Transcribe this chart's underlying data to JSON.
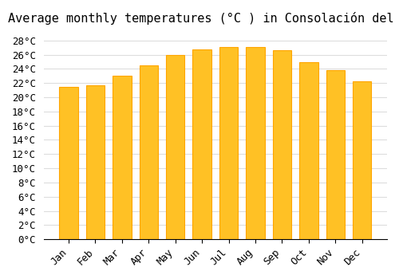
{
  "months": [
    "Jan",
    "Feb",
    "Mar",
    "Apr",
    "May",
    "Jun",
    "Jul",
    "Aug",
    "Sep",
    "Oct",
    "Nov",
    "Dec"
  ],
  "values": [
    21.5,
    21.7,
    23.0,
    24.5,
    26.0,
    26.7,
    27.1,
    27.1,
    26.6,
    25.0,
    23.8,
    22.2
  ],
  "bar_color_face": "#FFC125",
  "bar_color_edge": "#FFA500",
  "title": "Average monthly temperatures (°C ) in Consolación del Sur",
  "ylim": [
    0,
    29
  ],
  "yticks": [
    0,
    2,
    4,
    6,
    8,
    10,
    12,
    14,
    16,
    18,
    20,
    22,
    24,
    26,
    28
  ],
  "ylabel_suffix": "°C",
  "background_color": "#ffffff",
  "grid_color": "#dddddd",
  "title_fontsize": 11,
  "tick_fontsize": 9,
  "font_family": "monospace"
}
